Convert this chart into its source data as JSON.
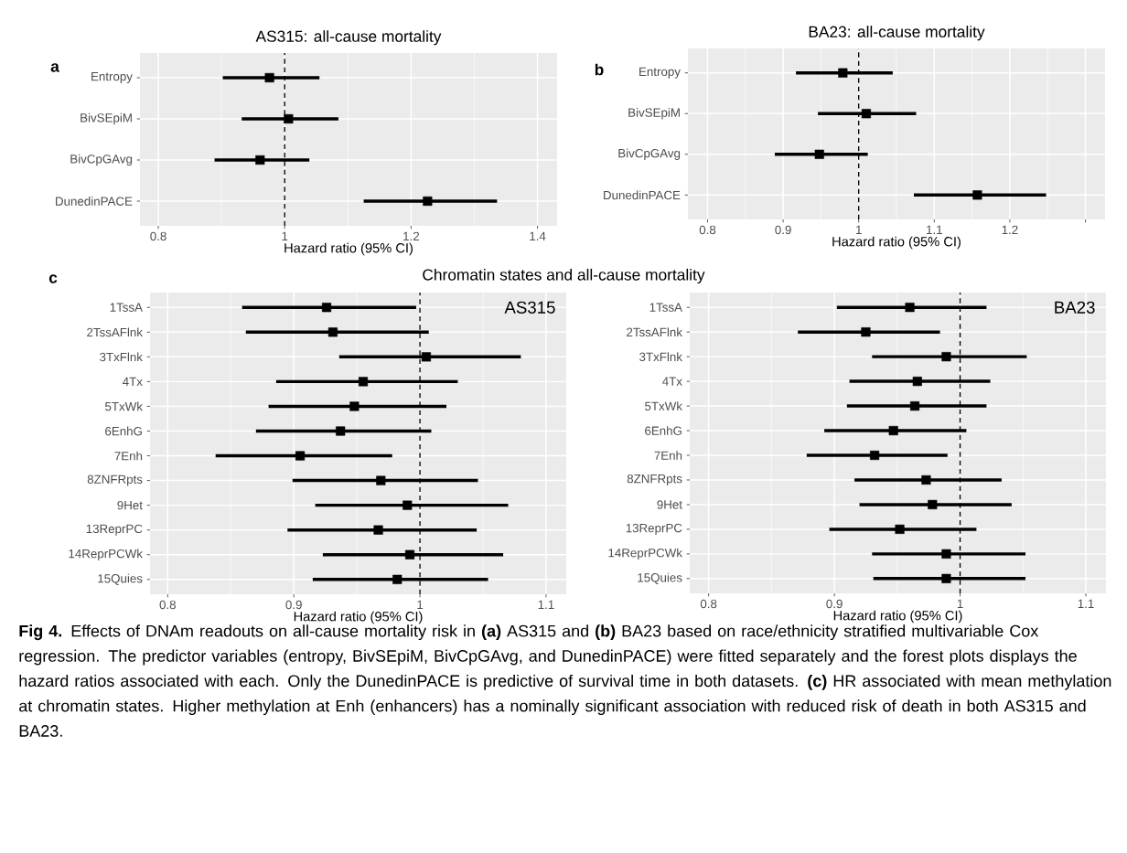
{
  "chart_data": [
    {
      "type": "scatter",
      "orientation": "horizontal",
      "title": "AS315: all-cause mortality",
      "xlabel": "Hazard ratio (95% CI)",
      "annotations": [
        "a"
      ],
      "categories": [
        "Entropy",
        "BivSEpiM",
        "BivCpGAvg",
        "DunedinPACE"
      ],
      "values": [
        0.976,
        1.006,
        0.961,
        1.226
      ],
      "errors": [
        [
          0.902,
          1.055
        ],
        [
          0.932,
          1.085
        ],
        [
          0.889,
          1.039
        ],
        [
          1.125,
          1.336
        ]
      ],
      "color": "#000000",
      "marker": "square",
      "grid": true,
      "xlim": [
        0.771,
        1.431
      ],
      "xticks": [
        0.8,
        1,
        1.2,
        1.4
      ],
      "ref_lines": [
        {
          "axis": "x",
          "value": 1,
          "line_style": "dashed"
        }
      ]
    },
    {
      "type": "scatter",
      "orientation": "horizontal",
      "title": "BA23: all-cause mortality",
      "xlabel": "Hazard ratio (95% CI)",
      "annotations": [
        "b"
      ],
      "categories": [
        "Entropy",
        "BivSEpiM",
        "BivCpGAvg",
        "DunedinPACE"
      ],
      "values": [
        0.979,
        1.01,
        0.948,
        1.157
      ],
      "errors": [
        [
          0.917,
          1.045
        ],
        [
          0.946,
          1.076
        ],
        [
          0.889,
          1.012
        ],
        [
          1.073,
          1.248
        ]
      ],
      "color": "#000000",
      "marker": "square",
      "grid": true,
      "xlim": [
        0.774,
        1.326
      ],
      "xticks": [
        0.8,
        0.9,
        1,
        1.1,
        1.2,
        {
          "value": 1.3,
          "label": null
        }
      ],
      "ref_lines": [
        {
          "axis": "x",
          "value": 1,
          "line_style": "dashed"
        }
      ]
    },
    {
      "type": "scatter",
      "orientation": "horizontal",
      "title": "Chromatin states and all-cause mortality",
      "xlabel": "Hazard ratio (95% CI)",
      "annotations": [
        "c",
        "AS315"
      ],
      "categories": [
        "1TssA",
        "2TssAFlnk",
        "3TxFlnk",
        "4Tx",
        "5TxWk",
        "6EnhG",
        "7Enh",
        "8ZNFRpts",
        "9Het",
        "13ReprPC",
        "14ReprPCWk",
        "15Quies"
      ],
      "values": [
        0.926,
        0.931,
        1.005,
        0.955,
        0.948,
        0.937,
        0.905,
        0.969,
        0.99,
        0.967,
        0.992,
        0.982
      ],
      "errors": [
        [
          0.859,
          0.997
        ],
        [
          0.862,
          1.007
        ],
        [
          0.936,
          1.08
        ],
        [
          0.886,
          1.03
        ],
        [
          0.88,
          1.021
        ],
        [
          0.87,
          1.009
        ],
        [
          0.838,
          0.978
        ],
        [
          0.899,
          1.046
        ],
        [
          0.917,
          1.07
        ],
        [
          0.895,
          1.045
        ],
        [
          0.923,
          1.066
        ],
        [
          0.915,
          1.054
        ]
      ],
      "color": "#000000",
      "marker": "square",
      "grid": true,
      "xlim": [
        0.786,
        1.116
      ],
      "xticks": [
        0.8,
        0.9,
        1,
        1.1
      ],
      "ref_lines": [
        {
          "axis": "x",
          "value": 1,
          "line_style": "dashed"
        }
      ]
    },
    {
      "type": "scatter",
      "orientation": "horizontal",
      "xlabel": "Hazard ratio (95% CI)",
      "annotations": [
        "BA23"
      ],
      "categories": [
        "1TssA",
        "2TssAFlnk",
        "3TxFlnk",
        "4Tx",
        "5TxWk",
        "6EnhG",
        "7Enh",
        "8ZNFRpts",
        "9Het",
        "13ReprPC",
        "14ReprPCWk",
        "15Quies"
      ],
      "values": [
        0.96,
        0.925,
        0.989,
        0.966,
        0.964,
        0.947,
        0.932,
        0.973,
        0.978,
        0.952,
        0.989,
        0.989
      ],
      "errors": [
        [
          0.902,
          1.021
        ],
        [
          0.871,
          0.984
        ],
        [
          0.93,
          1.053
        ],
        [
          0.912,
          1.024
        ],
        [
          0.91,
          1.021
        ],
        [
          0.892,
          1.005
        ],
        [
          0.878,
          0.99
        ],
        [
          0.916,
          1.033
        ],
        [
          0.92,
          1.041
        ],
        [
          0.896,
          1.013
        ],
        [
          0.93,
          1.052
        ],
        [
          0.931,
          1.052
        ]
      ],
      "color": "#000000",
      "marker": "square",
      "grid": true,
      "xlim": [
        0.785,
        1.116
      ],
      "xticks": [
        0.8,
        0.9,
        1,
        1.1
      ],
      "ref_lines": [
        {
          "axis": "x",
          "value": 1,
          "line_style": "dashed"
        }
      ]
    },
    {
      "type": "other",
      "annotations": [
        "**Fig 4.** Effects of DNAm readouts on all-cause mortality risk in **(a)** AS315 and **(b)** BA23 based on race/ethnicity stratified multivariable Cox regression. The predictor variables (entropy, BivSEpiM, BivCpGAvg, and DunedinPACE) were fitted separately and the forest plots displays the hazard ratios associated with each. Only the DunedinPACE is predictive of survival time in both datasets. **(c)** HR associated with mean methylation at chromatin states. Higher methylation at Enh (enhancers) has a nominally significant association with reduced risk of death in both AS315 and BA23."
      ]
    }
  ]
}
